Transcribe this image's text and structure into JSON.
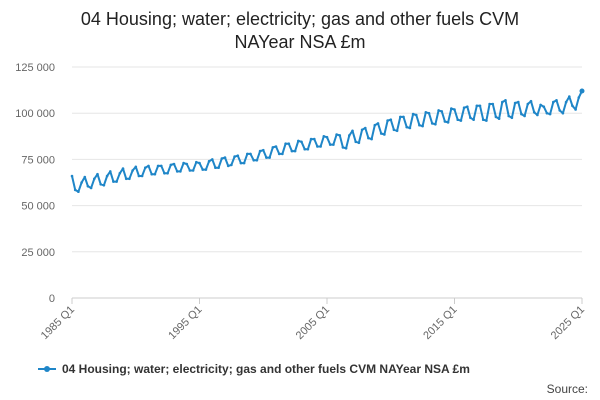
{
  "title_line1": "04 Housing; water; electricity; gas and other fuels CVM",
  "title_line2": "NAYear NSA £m",
  "source_label": "Source:",
  "colors": {
    "series": "#1f86c8",
    "grid": "#e6e6e6",
    "axis": "#cccccc"
  },
  "chart_data": {
    "type": "line",
    "title": "04 Housing; water; electricity; gas and other fuels CVM NAYear NSA £m",
    "xlabel": "",
    "ylabel": "",
    "ylim": [
      0,
      125000
    ],
    "y_ticks": [
      0,
      25000,
      50000,
      75000,
      100000,
      125000
    ],
    "y_tick_labels": [
      "0",
      "25 000",
      "50 000",
      "75 000",
      "100 000",
      "125 000"
    ],
    "x_tick_labels": [
      "1985 Q1",
      "1995 Q1",
      "2005 Q1",
      "2015 Q1",
      "2025 Q1"
    ],
    "x_tick_indices": [
      0,
      40,
      80,
      120,
      160
    ],
    "legend": "bottom-left",
    "series": [
      {
        "name": "04 Housing; water; electricity; gas and other fuels CVM NAYear NSA £m",
        "x": [
          "1985 Q1",
          "1985 Q2",
          "1985 Q3",
          "1985 Q4",
          "1986 Q1",
          "1986 Q2",
          "1986 Q3",
          "1986 Q4",
          "1987 Q1",
          "1987 Q2",
          "1987 Q3",
          "1987 Q4",
          "1988 Q1",
          "1988 Q2",
          "1988 Q3",
          "1988 Q4",
          "1989 Q1",
          "1989 Q2",
          "1989 Q3",
          "1989 Q4",
          "1990 Q1",
          "1990 Q2",
          "1990 Q3",
          "1990 Q4",
          "1991 Q1",
          "1991 Q2",
          "1991 Q3",
          "1991 Q4",
          "1992 Q1",
          "1992 Q2",
          "1992 Q3",
          "1992 Q4",
          "1993 Q1",
          "1993 Q2",
          "1993 Q3",
          "1993 Q4",
          "1994 Q1",
          "1994 Q2",
          "1994 Q3",
          "1994 Q4",
          "1995 Q1",
          "1995 Q2",
          "1995 Q3",
          "1995 Q4",
          "1996 Q1",
          "1996 Q2",
          "1996 Q3",
          "1996 Q4",
          "1997 Q1",
          "1997 Q2",
          "1997 Q3",
          "1997 Q4",
          "1998 Q1",
          "1998 Q2",
          "1998 Q3",
          "1998 Q4",
          "1999 Q1",
          "1999 Q2",
          "1999 Q3",
          "1999 Q4",
          "2000 Q1",
          "2000 Q2",
          "2000 Q3",
          "2000 Q4",
          "2001 Q1",
          "2001 Q2",
          "2001 Q3",
          "2001 Q4",
          "2002 Q1",
          "2002 Q2",
          "2002 Q3",
          "2002 Q4",
          "2003 Q1",
          "2003 Q2",
          "2003 Q3",
          "2003 Q4",
          "2004 Q1",
          "2004 Q2",
          "2004 Q3",
          "2004 Q4",
          "2005 Q1",
          "2005 Q2",
          "2005 Q3",
          "2005 Q4",
          "2006 Q1",
          "2006 Q2",
          "2006 Q3",
          "2006 Q4",
          "2007 Q1",
          "2007 Q2",
          "2007 Q3",
          "2007 Q4",
          "2008 Q1",
          "2008 Q2",
          "2008 Q3",
          "2008 Q4",
          "2009 Q1",
          "2009 Q2",
          "2009 Q3",
          "2009 Q4",
          "2010 Q1",
          "2010 Q2",
          "2010 Q3",
          "2010 Q4",
          "2011 Q1",
          "2011 Q2",
          "2011 Q3",
          "2011 Q4",
          "2012 Q1",
          "2012 Q2",
          "2012 Q3",
          "2012 Q4",
          "2013 Q1",
          "2013 Q2",
          "2013 Q3",
          "2013 Q4",
          "2014 Q1",
          "2014 Q2",
          "2014 Q3",
          "2014 Q4",
          "2015 Q1",
          "2015 Q2",
          "2015 Q3",
          "2015 Q4",
          "2016 Q1",
          "2016 Q2",
          "2016 Q3",
          "2016 Q4",
          "2017 Q1",
          "2017 Q2",
          "2017 Q3",
          "2017 Q4",
          "2018 Q1",
          "2018 Q2",
          "2018 Q3",
          "2018 Q4",
          "2019 Q1",
          "2019 Q2",
          "2019 Q3",
          "2019 Q4",
          "2020 Q1",
          "2020 Q2",
          "2020 Q3",
          "2020 Q4",
          "2021 Q1",
          "2021 Q2",
          "2021 Q3",
          "2021 Q4",
          "2022 Q1",
          "2022 Q2",
          "2022 Q3",
          "2022 Q4",
          "2023 Q1",
          "2023 Q2",
          "2023 Q3",
          "2023 Q4",
          "2024 Q1",
          "2024 Q2",
          "2024 Q3",
          "2024 Q4",
          "2025 Q1"
        ],
        "values": [
          66000,
          58500,
          57500,
          62500,
          65500,
          60500,
          59500,
          64500,
          67000,
          61500,
          61000,
          66000,
          68500,
          63000,
          63000,
          67500,
          70000,
          64500,
          64500,
          69000,
          71000,
          66000,
          66000,
          70500,
          71500,
          67000,
          67000,
          71500,
          71500,
          67500,
          67500,
          72000,
          72500,
          68500,
          68500,
          73000,
          72500,
          69000,
          69000,
          73500,
          73000,
          69500,
          69500,
          74000,
          75000,
          70500,
          70500,
          75500,
          76000,
          71500,
          72000,
          76500,
          77000,
          73000,
          73000,
          78000,
          78000,
          74500,
          74500,
          79500,
          80000,
          76000,
          76000,
          81500,
          82000,
          78000,
          78000,
          83500,
          83500,
          79500,
          79500,
          85000,
          84500,
          80500,
          80500,
          86000,
          86000,
          82000,
          82000,
          87500,
          87000,
          83000,
          83000,
          88500,
          88000,
          81500,
          81000,
          88000,
          90500,
          84500,
          84000,
          91000,
          92000,
          86500,
          86000,
          93500,
          94500,
          89000,
          88500,
          96000,
          96500,
          91000,
          90500,
          98000,
          98000,
          92500,
          92000,
          99500,
          99000,
          93500,
          93000,
          100500,
          100000,
          94500,
          94000,
          101500,
          101000,
          95500,
          95000,
          102500,
          102000,
          96500,
          96000,
          103000,
          103500,
          97500,
          96500,
          104000,
          104000,
          96500,
          96000,
          105000,
          105000,
          98000,
          97000,
          106000,
          107000,
          98500,
          97500,
          105500,
          106000,
          99500,
          98500,
          105000,
          106500,
          100500,
          99000,
          104500,
          103500,
          100000,
          99500,
          106000,
          107000,
          101500,
          100000,
          106000,
          109000,
          104000,
          102000,
          108500,
          112000
        ]
      }
    ]
  }
}
